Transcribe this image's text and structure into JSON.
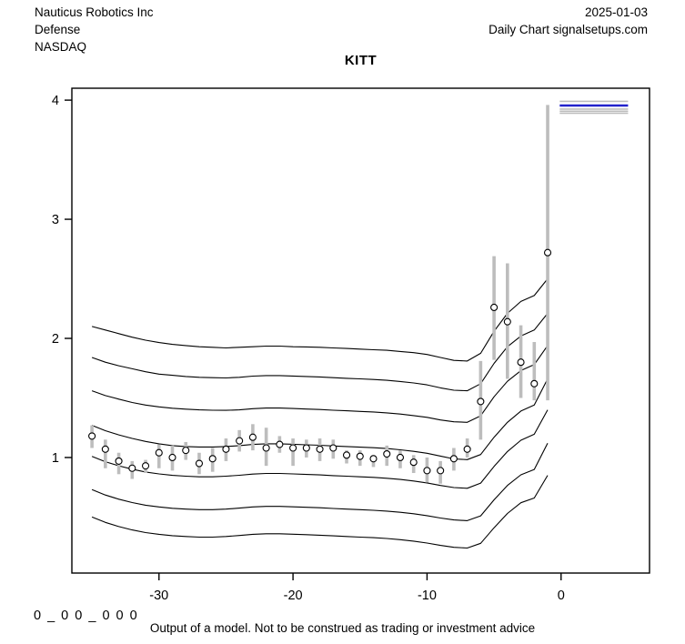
{
  "header": {
    "company": "Nauticus Robotics Inc",
    "sector": "Defense",
    "exchange": "NASDAQ",
    "date": "2025-01-03",
    "source": "Daily Chart signalsetups.com"
  },
  "title": "KITT",
  "footer": {
    "flags": "0 _ 0 0 _ 0 0 0",
    "disclaimer": "Output of a model. Not to be construed as trading or investment advice"
  },
  "colors": {
    "axis": "#000000",
    "curve": "#000000",
    "bar": "#bdbdbd",
    "forecast_gray": "#bdbdbd",
    "forecast_blue": "#2222cc",
    "marker_fill": "#ffffff",
    "marker_stroke": "#000000"
  },
  "chart_data": {
    "type": "line",
    "title": "KITT",
    "xlabel": "",
    "ylabel": "",
    "grid": false,
    "legend": "none",
    "xlim": [
      -36.5,
      6.6
    ],
    "ylim": [
      0.03,
      4.1
    ],
    "x_ticks": [
      -30,
      -20,
      -10,
      0
    ],
    "y_ticks": [
      1,
      2,
      3,
      4
    ],
    "price_points": {
      "note": "daily close (circle) with low-high range bar, x = trading days before 2025-01-03",
      "x": [
        -35,
        -34,
        -33,
        -32,
        -31,
        -30,
        -29,
        -28,
        -27,
        -26,
        -25,
        -24,
        -23,
        -22,
        -21,
        -20,
        -19,
        -18,
        -17,
        -16,
        -15,
        -14,
        -13,
        -12,
        -11,
        -10,
        -9,
        -8,
        -7,
        -6,
        -5,
        -4,
        -3,
        -2,
        -1
      ],
      "close": [
        1.18,
        1.07,
        0.97,
        0.91,
        0.93,
        1.04,
        1.0,
        1.06,
        0.95,
        0.99,
        1.07,
        1.14,
        1.17,
        1.08,
        1.11,
        1.08,
        1.08,
        1.07,
        1.08,
        1.02,
        1.01,
        0.99,
        1.03,
        1.0,
        0.96,
        0.89,
        0.89,
        0.99,
        1.07,
        1.47,
        2.26,
        2.14,
        1.8,
        1.62,
        2.72
      ],
      "low": [
        1.08,
        0.91,
        0.86,
        0.82,
        0.87,
        0.91,
        0.89,
        0.98,
        0.86,
        0.88,
        0.97,
        1.05,
        1.06,
        0.93,
        1.04,
        0.93,
        1.0,
        0.97,
        0.99,
        0.95,
        0.93,
        0.92,
        0.93,
        0.91,
        0.87,
        0.79,
        0.78,
        0.89,
        1.0,
        1.15,
        1.82,
        1.66,
        1.5,
        1.48,
        1.48
      ],
      "high": [
        1.27,
        1.15,
        1.04,
        0.97,
        0.98,
        1.11,
        1.1,
        1.13,
        1.04,
        1.08,
        1.16,
        1.23,
        1.28,
        1.25,
        1.18,
        1.16,
        1.15,
        1.16,
        1.15,
        1.06,
        1.06,
        1.02,
        1.1,
        1.06,
        1.02,
        1.0,
        0.97,
        1.08,
        1.16,
        1.81,
        2.69,
        2.63,
        2.11,
        1.97,
        3.96
      ]
    },
    "quantile_curves": {
      "x": [
        -35,
        -34,
        -33,
        -32,
        -31,
        -30,
        -29,
        -28,
        -27,
        -26,
        -25,
        -24,
        -23,
        -22,
        -21,
        -20,
        -19,
        -18,
        -17,
        -16,
        -15,
        -14,
        -13,
        -12,
        -11,
        -10,
        -9,
        -8,
        -7,
        -6,
        -5,
        -4,
        -3,
        -2,
        -1
      ],
      "series": [
        {
          "name": "q-upper-3",
          "values": [
            2.1,
            2.07,
            2.04,
            2.01,
            1.985,
            1.965,
            1.95,
            1.94,
            1.93,
            1.925,
            1.92,
            1.925,
            1.93,
            1.935,
            1.935,
            1.93,
            1.928,
            1.925,
            1.92,
            1.915,
            1.91,
            1.905,
            1.9,
            1.89,
            1.88,
            1.865,
            1.84,
            1.815,
            1.81,
            1.875,
            2.06,
            2.21,
            2.31,
            2.36,
            2.5
          ]
        },
        {
          "name": "q-upper-2",
          "values": [
            1.84,
            1.8,
            1.77,
            1.745,
            1.72,
            1.7,
            1.69,
            1.68,
            1.673,
            1.67,
            1.668,
            1.673,
            1.683,
            1.688,
            1.688,
            1.684,
            1.68,
            1.676,
            1.67,
            1.665,
            1.66,
            1.655,
            1.648,
            1.638,
            1.626,
            1.61,
            1.585,
            1.565,
            1.56,
            1.62,
            1.79,
            1.93,
            2.02,
            2.07,
            2.21
          ]
        },
        {
          "name": "q-upper-1",
          "values": [
            1.56,
            1.52,
            1.49,
            1.462,
            1.44,
            1.425,
            1.414,
            1.406,
            1.4,
            1.397,
            1.396,
            1.4,
            1.41,
            1.415,
            1.415,
            1.411,
            1.407,
            1.403,
            1.397,
            1.392,
            1.387,
            1.382,
            1.375,
            1.365,
            1.352,
            1.337,
            1.315,
            1.3,
            1.295,
            1.35,
            1.51,
            1.64,
            1.73,
            1.78,
            1.94
          ]
        },
        {
          "name": "q-median",
          "values": [
            1.27,
            1.225,
            1.19,
            1.16,
            1.135,
            1.115,
            1.1,
            1.092,
            1.088,
            1.088,
            1.092,
            1.1,
            1.11,
            1.115,
            1.115,
            1.111,
            1.107,
            1.103,
            1.097,
            1.092,
            1.087,
            1.082,
            1.075,
            1.065,
            1.052,
            1.036,
            1.012,
            0.988,
            0.982,
            1.025,
            1.17,
            1.295,
            1.39,
            1.44,
            1.66
          ]
        },
        {
          "name": "q-lower-1",
          "values": [
            1.01,
            0.965,
            0.93,
            0.902,
            0.878,
            0.862,
            0.85,
            0.843,
            0.838,
            0.838,
            0.843,
            0.851,
            0.861,
            0.866,
            0.866,
            0.862,
            0.858,
            0.854,
            0.848,
            0.843,
            0.838,
            0.833,
            0.826,
            0.816,
            0.803,
            0.787,
            0.765,
            0.748,
            0.742,
            0.785,
            0.925,
            1.05,
            1.145,
            1.195,
            1.4
          ]
        },
        {
          "name": "q-lower-2",
          "values": [
            0.73,
            0.685,
            0.65,
            0.622,
            0.6,
            0.585,
            0.574,
            0.567,
            0.562,
            0.562,
            0.567,
            0.575,
            0.585,
            0.59,
            0.59,
            0.586,
            0.582,
            0.578,
            0.572,
            0.567,
            0.562,
            0.557,
            0.55,
            0.54,
            0.528,
            0.512,
            0.492,
            0.476,
            0.47,
            0.51,
            0.645,
            0.765,
            0.855,
            0.9,
            1.12
          ]
        },
        {
          "name": "q-lower-3",
          "values": [
            0.5,
            0.455,
            0.42,
            0.392,
            0.37,
            0.355,
            0.344,
            0.337,
            0.332,
            0.332,
            0.337,
            0.345,
            0.355,
            0.36,
            0.36,
            0.356,
            0.352,
            0.348,
            0.342,
            0.337,
            0.332,
            0.327,
            0.32,
            0.31,
            0.298,
            0.282,
            0.262,
            0.246,
            0.24,
            0.28,
            0.41,
            0.53,
            0.62,
            0.66,
            0.85
          ]
        }
      ]
    },
    "forecast_lines": {
      "note": "horizontal forecast quantile segments at top right",
      "x_start": -0.1,
      "x_end": 5.0,
      "lines": [
        {
          "value": 3.99,
          "color": "gray",
          "width": 1.6
        },
        {
          "value": 3.955,
          "color": "blue",
          "width": 2.6
        },
        {
          "value": 3.925,
          "color": "gray",
          "width": 1.6
        },
        {
          "value": 3.907,
          "color": "gray",
          "width": 1.6
        },
        {
          "value": 3.89,
          "color": "gray",
          "width": 1.6
        }
      ]
    }
  }
}
